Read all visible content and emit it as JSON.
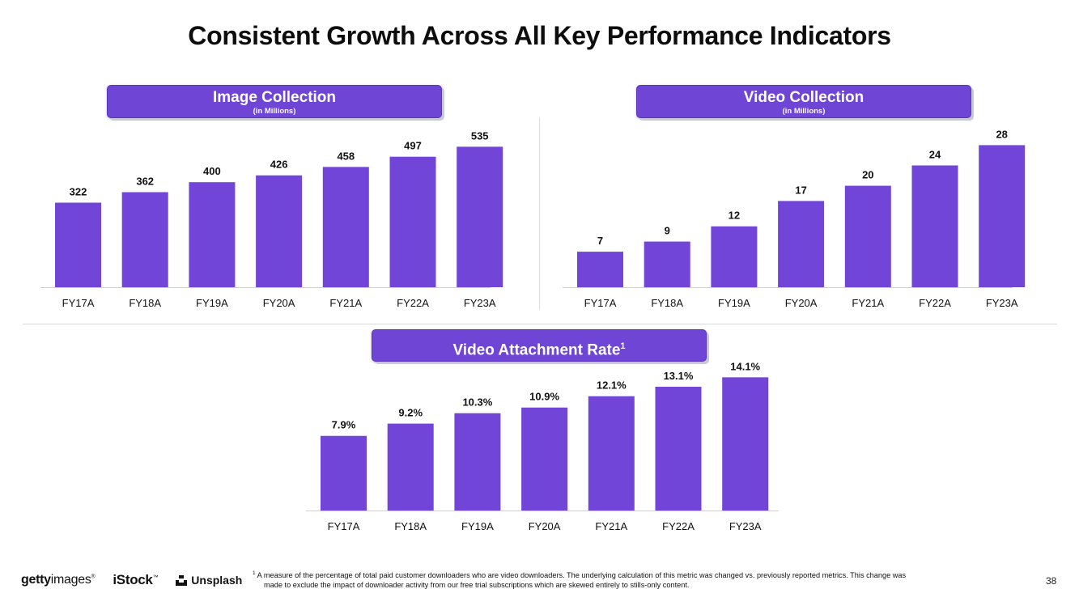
{
  "page": {
    "title": "Consistent Growth Across All Key Performance Indicators",
    "page_number": "38"
  },
  "colors": {
    "bar": "#7045d8",
    "header": "#6f45d6",
    "axis": "#d0d0d0"
  },
  "chart_data": [
    {
      "type": "bar",
      "title": "Image Collection",
      "subtitle": "(in Millions)",
      "categories": [
        "FY17A",
        "FY18A",
        "FY19A",
        "FY20A",
        "FY21A",
        "FY22A",
        "FY23A"
      ],
      "values": [
        322,
        362,
        400,
        426,
        458,
        497,
        535
      ],
      "labels": [
        "322",
        "362",
        "400",
        "426",
        "458",
        "497",
        "535"
      ],
      "ylim": [
        0,
        570
      ]
    },
    {
      "type": "bar",
      "title": "Video Collection",
      "subtitle": "(in Millions)",
      "categories": [
        "FY17A",
        "FY18A",
        "FY19A",
        "FY20A",
        "FY21A",
        "FY22A",
        "FY23A"
      ],
      "values": [
        7,
        9,
        12,
        17,
        20,
        24,
        28
      ],
      "labels": [
        "7",
        "9",
        "12",
        "17",
        "20",
        "24",
        "28"
      ],
      "ylim": [
        0,
        29.5
      ]
    },
    {
      "type": "bar",
      "title": "Video Attachment Rate",
      "title_sup": "1",
      "categories": [
        "FY17A",
        "FY18A",
        "FY19A",
        "FY20A",
        "FY21A",
        "FY22A",
        "FY23A"
      ],
      "values": [
        7.9,
        9.2,
        10.3,
        10.9,
        12.1,
        13.1,
        14.1
      ],
      "labels": [
        "7.9%",
        "9.2%",
        "10.3%",
        "10.9%",
        "12.1%",
        "13.1%",
        "14.1%"
      ],
      "ylim": [
        0,
        15.5
      ]
    }
  ],
  "footer": {
    "logos": {
      "getty_bold": "getty",
      "getty_light": "images",
      "istock": "iStock",
      "unsplash": "Unsplash"
    },
    "footnote_marker": "1",
    "footnote_line1": "A measure of the percentage of total paid customer downloaders who are video downloaders. The underlying calculation of this metric was changed vs. previously reported metrics. This change was",
    "footnote_line2": "made to exclude the impact of downloader activity from our free trial subscriptions which are skewed entirely to stills-only content."
  }
}
